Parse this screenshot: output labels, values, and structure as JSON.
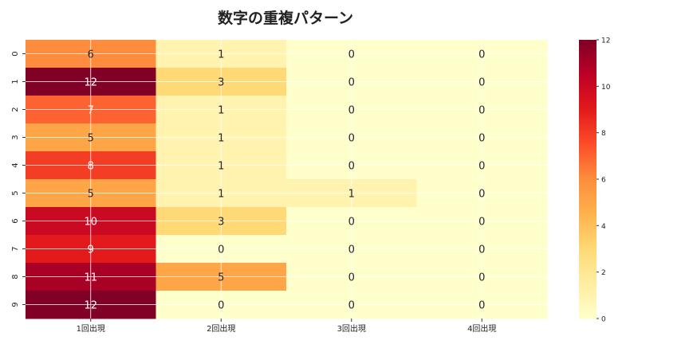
{
  "chart_data": {
    "type": "heatmap",
    "title": "数字の重複パターン",
    "columns": [
      "1回出現",
      "2回出現",
      "3回出現",
      "4回出現"
    ],
    "rows": [
      "0",
      "1",
      "2",
      "3",
      "4",
      "5",
      "6",
      "7",
      "8",
      "9"
    ],
    "values": [
      [
        6,
        1,
        0,
        0
      ],
      [
        12,
        3,
        0,
        0
      ],
      [
        7,
        1,
        0,
        0
      ],
      [
        5,
        1,
        0,
        0
      ],
      [
        8,
        1,
        0,
        0
      ],
      [
        5,
        1,
        1,
        0
      ],
      [
        10,
        3,
        0,
        0
      ],
      [
        9,
        0,
        0,
        0
      ],
      [
        11,
        5,
        0,
        0
      ],
      [
        12,
        0,
        0,
        0
      ]
    ],
    "colormap": "YlOrRd",
    "vmin": 0,
    "vmax": 12,
    "colorbar_ticks": [
      0,
      2,
      4,
      6,
      8,
      10,
      12
    ],
    "annotations": true,
    "grid": true
  }
}
